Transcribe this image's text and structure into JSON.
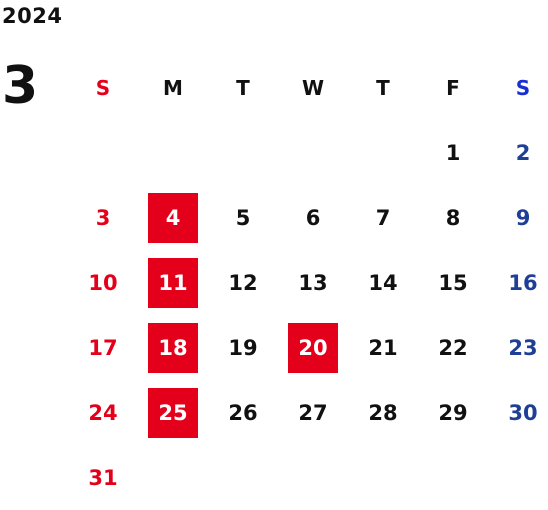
{
  "calendar": {
    "year": "2024",
    "month": "3",
    "weekdays": [
      "S",
      "M",
      "T",
      "W",
      "T",
      "F",
      "S"
    ],
    "weeks": [
      [
        "",
        "",
        "",
        "",
        "",
        "1",
        "2"
      ],
      [
        "3",
        "4",
        "5",
        "6",
        "7",
        "8",
        "9"
      ],
      [
        "10",
        "11",
        "12",
        "13",
        "14",
        "15",
        "16"
      ],
      [
        "17",
        "18",
        "19",
        "20",
        "21",
        "22",
        "23"
      ],
      [
        "24",
        "25",
        "26",
        "27",
        "28",
        "29",
        "30"
      ],
      [
        "31",
        "",
        "",
        "",
        "",
        "",
        ""
      ]
    ],
    "highlighted_days": [
      "4",
      "11",
      "18",
      "20",
      "25"
    ]
  },
  "colors": {
    "sunday": "#e4001b",
    "saturday_header": "#1a2fd0",
    "saturday": "#1f3f96",
    "highlight_bg": "#e4001b",
    "highlight_text": "#ffffff",
    "weekday_text": "#111111"
  }
}
